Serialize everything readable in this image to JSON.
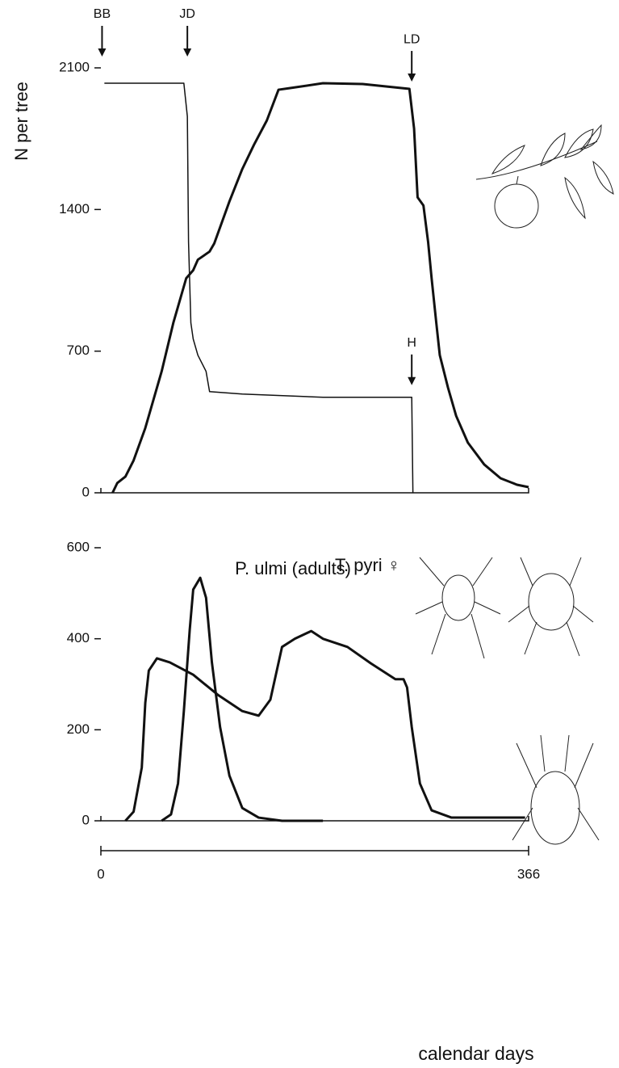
{
  "chart_data": [
    {
      "type": "line",
      "ylabel": "N per tree",
      "xlim": [
        0,
        366
      ],
      "ylim": [
        0,
        2100
      ],
      "yticks": [
        0,
        700,
        1400,
        2100
      ],
      "annotations": [
        {
          "label": "BB",
          "x": 1
        },
        {
          "label": "JD",
          "x": 74
        },
        {
          "label": "LD",
          "x": 266,
          "y": 2000
        },
        {
          "label": "H",
          "x": 266,
          "y": 500
        }
      ],
      "series": [
        {
          "color": "#111111",
          "line_width": 1.5,
          "x": [
            3,
            71,
            74,
            75,
            77,
            79,
            83,
            90,
            93,
            121,
            190,
            266,
            267
          ],
          "values": [
            2024,
            2024,
            1860,
            1240,
            840,
            760,
            680,
            600,
            500,
            488,
            472,
            472,
            0
          ]
        },
        {
          "color": "#111111",
          "line_width": 3,
          "x": [
            10,
            14,
            21,
            28,
            38,
            52,
            62,
            73,
            79,
            83,
            93,
            97,
            100,
            110,
            121,
            131,
            142,
            152,
            162,
            190,
            224,
            264,
            268,
            271,
            276,
            280,
            283,
            287,
            290,
            297,
            304,
            314,
            328,
            342,
            356,
            366
          ],
          "values": [
            0,
            48,
            80,
            160,
            320,
            600,
            840,
            1060,
            1100,
            1152,
            1192,
            1232,
            1280,
            1440,
            1600,
            1720,
            1840,
            1992,
            2000,
            2024,
            2020,
            1996,
            1800,
            1460,
            1420,
            1240,
            1060,
            840,
            680,
            520,
            380,
            248,
            140,
            72,
            40,
            28
          ]
        }
      ]
    },
    {
      "type": "line",
      "xlabel": "calendar days",
      "xlim": [
        0,
        366
      ],
      "xticks": [
        0,
        366
      ],
      "ylim": [
        0,
        600
      ],
      "yticks": [
        0,
        200,
        400,
        600
      ],
      "series": [
        {
          "name": "P. ulmi (adults)",
          "color": "#111111",
          "line_width": 3,
          "x": [
            52,
            60,
            66,
            71,
            76,
            79,
            85,
            90,
            95,
            102,
            110,
            121,
            135,
            155,
            190
          ],
          "values": [
            0,
            14,
            82,
            241,
            419,
            508,
            534,
            490,
            348,
            206,
            99,
            28,
            7,
            0,
            0
          ]
        },
        {
          "name": "T. pyri ♀",
          "color": "#111111",
          "line_width": 3,
          "x": [
            21,
            28,
            35,
            38,
            41,
            48,
            59,
            79,
            100,
            121,
            135,
            145,
            155,
            166,
            180,
            190,
            211,
            231,
            252,
            259,
            262,
            266,
            273,
            283,
            300,
            363
          ],
          "values": [
            0,
            20,
            117,
            259,
            330,
            357,
            348,
            321,
            277,
            241,
            231,
            266,
            382,
            400,
            417,
            400,
            382,
            346,
            311,
            311,
            293,
            206,
            82,
            23,
            7,
            7
          ]
        }
      ]
    }
  ]
}
